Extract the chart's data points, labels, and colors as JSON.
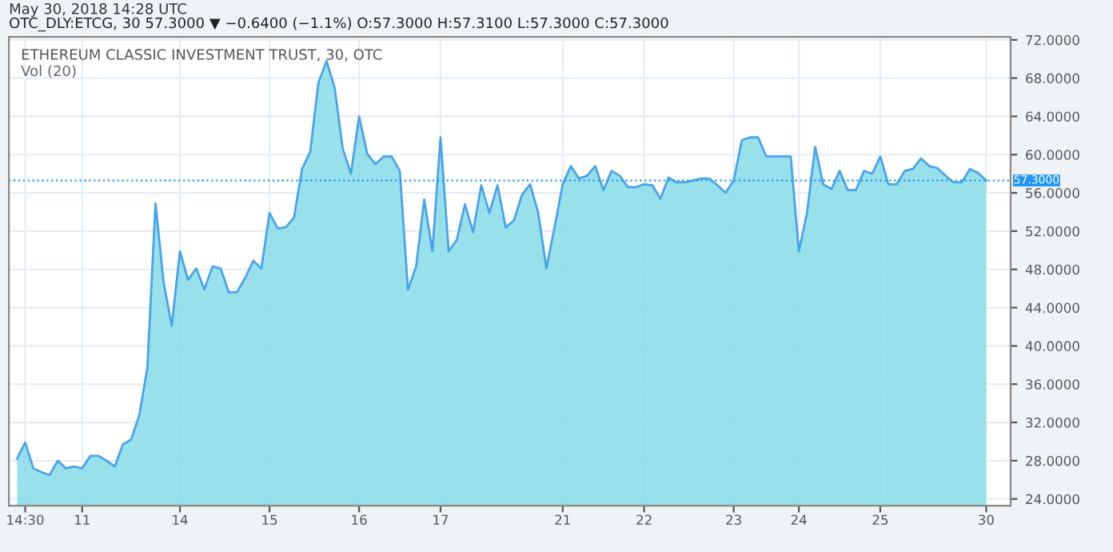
{
  "chart_data": {
    "type": "area",
    "title": "ETHEREUM CLASSIC INVESTMENT TRUST, 30, OTC",
    "subtitle": "OTC_DLY:ETCG, 30 57.3000 ▼ −0.6400 (−1.1%) O:57.3000 H:57.3100 L:57.3000 C:57.3000",
    "annotations": [
      "May 30, 2018 14:28 UTC",
      "Vol (20)"
    ],
    "categories": [
      null,
      "14:30",
      null,
      null,
      null,
      null,
      null,
      null,
      "11",
      null,
      null,
      null,
      null,
      null,
      null,
      null,
      null,
      null,
      null,
      null,
      "14",
      null,
      null,
      null,
      null,
      null,
      null,
      null,
      null,
      null,
      null,
      "15",
      null,
      null,
      null,
      null,
      null,
      null,
      null,
      null,
      null,
      null,
      "16",
      null,
      null,
      null,
      null,
      null,
      null,
      null,
      null,
      null,
      "17",
      null,
      null,
      null,
      null,
      null,
      null,
      null,
      null,
      null,
      null,
      null,
      null,
      null,
      null,
      "21",
      null,
      null,
      null,
      null,
      null,
      null,
      null,
      null,
      null,
      "22",
      null,
      null,
      null,
      null,
      null,
      null,
      null,
      null,
      null,
      null,
      "23",
      null,
      null,
      null,
      null,
      null,
      null,
      null,
      "24",
      null,
      null,
      null,
      null,
      null,
      null,
      null,
      null,
      null,
      "25",
      null,
      null,
      null,
      null,
      null,
      null,
      null,
      null,
      null,
      null,
      null,
      null,
      "30"
    ],
    "series": [
      {
        "color": "#4aa3e8",
        "values": [
          28.2,
          29.9,
          27.2,
          26.8,
          26.5,
          28.0,
          27.2,
          27.4,
          27.2,
          28.5,
          28.5,
          28.0,
          27.4,
          29.7,
          30.2,
          32.7,
          37.7,
          54.9,
          46.6,
          42.1,
          49.9,
          46.9,
          48.1,
          45.9,
          48.3,
          48.1,
          45.6,
          45.6,
          47.1,
          48.9,
          48.1,
          53.9,
          52.3,
          52.4,
          53.4,
          58.5,
          60.3,
          67.5,
          69.8,
          67.0,
          60.6,
          58.0,
          64.0,
          60.1,
          59.0,
          59.8,
          59.8,
          58.3,
          45.9,
          48.3,
          55.3,
          49.9,
          61.8,
          49.9,
          51.1,
          54.8,
          51.9,
          56.8,
          53.9,
          56.8,
          52.4,
          53.1,
          55.8,
          56.9,
          53.9,
          48.1,
          52.4,
          56.9,
          58.8,
          57.5,
          57.8,
          58.8,
          56.3,
          58.3,
          57.8,
          56.6,
          56.6,
          56.9,
          56.8,
          55.4,
          57.6,
          57.1,
          57.1,
          57.3,
          57.5,
          57.5,
          56.8,
          56.0,
          57.3,
          61.5,
          61.8,
          61.8,
          59.8,
          59.8,
          59.8,
          59.8,
          49.9,
          53.9,
          60.8,
          56.9,
          56.4,
          58.3,
          56.3,
          56.3,
          58.3,
          58.0,
          59.8,
          56.9,
          56.9,
          58.3,
          58.5,
          59.6,
          58.8,
          58.6,
          57.8,
          57.1,
          57.1,
          58.5,
          58.1,
          57.3
        ]
      }
    ],
    "ylim": [
      23.3,
      72.3
    ],
    "yticks": [
      {
        "value": 24,
        "label": "24.0000"
      },
      {
        "value": 28,
        "label": "28.0000"
      },
      {
        "value": 32,
        "label": "32.0000"
      },
      {
        "value": 36,
        "label": "36.0000"
      },
      {
        "value": 40,
        "label": "40.0000"
      },
      {
        "value": 44,
        "label": "44.0000"
      },
      {
        "value": 48,
        "label": "48.0000"
      },
      {
        "value": 52,
        "label": "52.0000"
      },
      {
        "value": 56,
        "label": "56.0000"
      },
      {
        "value": 60,
        "label": "60.0000"
      },
      {
        "value": 64,
        "label": "64.0000"
      },
      {
        "value": 68,
        "label": "68.0000"
      },
      {
        "value": 72,
        "label": "72.0000"
      }
    ],
    "grid": true,
    "ref_lines": [
      {
        "axis": "y",
        "value": 57.3,
        "label": "57.3000",
        "color": "#2196f3",
        "line_style": "dotted"
      }
    ]
  }
}
